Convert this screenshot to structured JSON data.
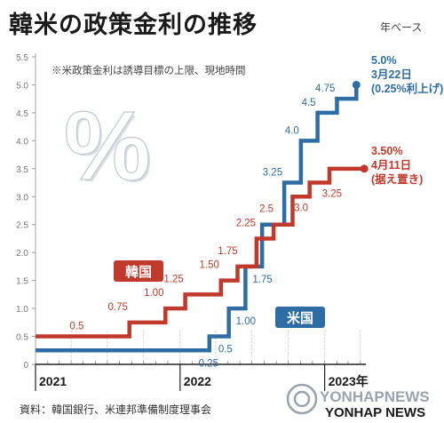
{
  "title": "韓米の政策金利の推移",
  "unit_label": "年ベース",
  "source": "資料：韓国銀行、米連邦準備制度理事会",
  "logo": {
    "main": "YONHAPNEWS",
    "sub": "YONHAP NEWS"
  },
  "colors": {
    "korea": "#c0392b",
    "us": "#2e6da4",
    "axis": "#222222",
    "grid": "#bbbbbb"
  },
  "chart_data": {
    "type": "line",
    "step": true,
    "note": "※米政策金利は誘導目標の上限、現地時間",
    "big_symbol": "%",
    "ylim": [
      0,
      5.5
    ],
    "yticks": [
      "0",
      "0.5",
      "1.0",
      "1.5",
      "2.0",
      "2.5",
      "3.0",
      "3.5",
      "4.0",
      "4.5",
      "5.0",
      "5.5"
    ],
    "x_labels": [
      "2021",
      "2022",
      "2023年"
    ],
    "xlim": [
      "2021-01-01",
      "2023-04-15"
    ],
    "series": [
      {
        "name": "韓国",
        "key": "korea",
        "points": [
          {
            "x": "2021-01-01",
            "y": 0.5
          },
          {
            "x": "2021-08-26",
            "y": 0.75,
            "label": "0.75"
          },
          {
            "x": "2021-11-25",
            "y": 1.0,
            "label": "1.00"
          },
          {
            "x": "2022-01-14",
            "y": 1.25,
            "label": "1.25"
          },
          {
            "x": "2022-04-14",
            "y": 1.5,
            "label": "1.50"
          },
          {
            "x": "2022-05-26",
            "y": 1.75,
            "label": "1.75"
          },
          {
            "x": "2022-07-13",
            "y": 2.25,
            "label": "2.25"
          },
          {
            "x": "2022-08-25",
            "y": 2.5,
            "label": "2.5"
          },
          {
            "x": "2022-10-12",
            "y": 3.0,
            "label": "3.0"
          },
          {
            "x": "2022-11-24",
            "y": 3.25,
            "label": "3.25"
          },
          {
            "x": "2023-01-13",
            "y": 3.5
          },
          {
            "x": "2023-04-11",
            "y": 3.5
          }
        ],
        "first_label": "0.5",
        "end_annotation": [
          "3.50%",
          "4月11日",
          "(据え置き)"
        ]
      },
      {
        "name": "米国",
        "key": "us",
        "points": [
          {
            "x": "2021-01-01",
            "y": 0.25
          },
          {
            "x": "2022-03-16",
            "y": 0.5,
            "label": "0.5"
          },
          {
            "x": "2022-05-04",
            "y": 1.0,
            "label": "1.00"
          },
          {
            "x": "2022-06-15",
            "y": 1.75,
            "label": "1.75"
          },
          {
            "x": "2022-07-27",
            "y": 2.5
          },
          {
            "x": "2022-09-21",
            "y": 3.25,
            "label": "3.25"
          },
          {
            "x": "2022-11-02",
            "y": 4.0,
            "label": "4.0"
          },
          {
            "x": "2022-12-14",
            "y": 4.5,
            "label": "4.5"
          },
          {
            "x": "2023-02-01",
            "y": 4.75,
            "label": "4.75"
          },
          {
            "x": "2023-03-22",
            "y": 5.0
          }
        ],
        "first_label": "0.25",
        "end_annotation": [
          "5.0%",
          "3月22日",
          "(0.25%利上げ)"
        ]
      }
    ]
  }
}
